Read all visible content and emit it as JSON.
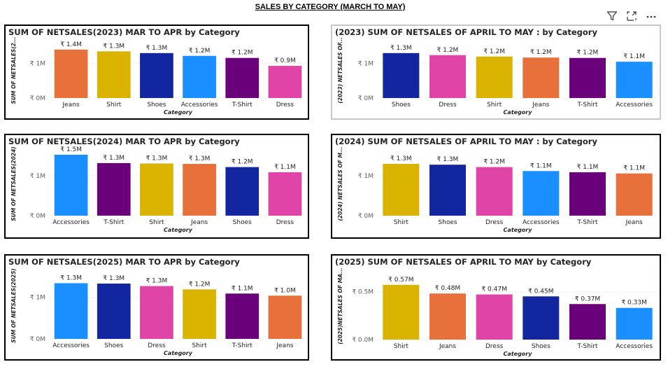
{
  "page": {
    "title": "SALES BY CATEGORY (MARCH TO MAY)"
  },
  "toolbar": {
    "icons": [
      "filter-icon",
      "focus-mode-icon",
      "more-options-icon"
    ]
  },
  "colors": {
    "Jeans": "#E8703A",
    "Shirt": "#D9B300",
    "Shoes": "#1226A0",
    "Accessories": "#1A8FFF",
    "T-Shirt": "#6B007B",
    "Dress": "#E044A7"
  },
  "chart_data": [
    {
      "type": "bar",
      "title": "SUM OF NETSALES(2023) MAR TO APR by Category",
      "xlabel": "Category",
      "ylabel": "SUM OF NETSALES(2...",
      "ylim": [
        0,
        1.6
      ],
      "yticks": [
        0,
        1
      ],
      "yticklabels": [
        "₹ 0M",
        "₹ 1M"
      ],
      "categories": [
        "Jeans",
        "Shirt",
        "Shoes",
        "Accessories",
        "T-Shirt",
        "Dress"
      ],
      "values": [
        1.4,
        1.35,
        1.3,
        1.22,
        1.16,
        0.93
      ],
      "labels": [
        "₹ 1.4M",
        "₹ 1.3M",
        "₹ 1.3M",
        "₹ 1.2M",
        "₹ 1.2M",
        "₹ 0.9M"
      ]
    },
    {
      "type": "bar",
      "title": "(2023) SUM OF NETSALES OF APRIL TO MAY : by Category",
      "xlabel": "Category",
      "ylabel": "(2023) NETSALES OF...",
      "ylim": [
        0,
        1.6
      ],
      "yticks": [
        0,
        1
      ],
      "yticklabels": [
        "₹ 0M",
        "₹ 1M"
      ],
      "categories": [
        "Shoes",
        "Dress",
        "Shirt",
        "Jeans",
        "T-Shirt",
        "Accessories"
      ],
      "values": [
        1.3,
        1.24,
        1.2,
        1.17,
        1.16,
        1.05
      ],
      "labels": [
        "₹ 1.3M",
        "₹ 1.2M",
        "₹ 1.2M",
        "₹ 1.2M",
        "₹ 1.2M",
        "₹ 1.1M"
      ]
    },
    {
      "type": "bar",
      "title": "SUM OF NETSALES(2024) MAR TO APR by Category",
      "xlabel": "Category",
      "ylabel": "SUM OF NETSALES(2024)",
      "ylim": [
        0,
        1.6
      ],
      "yticks": [
        0,
        1
      ],
      "yticklabels": [
        "₹ 0M",
        "₹ 1M"
      ],
      "categories": [
        "Accessories",
        "T-Shirt",
        "Shirt",
        "Jeans",
        "Shoes",
        "Dress"
      ],
      "values": [
        1.53,
        1.32,
        1.31,
        1.3,
        1.22,
        1.09
      ],
      "labels": [
        "₹ 1.5M",
        "₹ 1.3M",
        "₹ 1.3M",
        "₹ 1.3M",
        "₹ 1.2M",
        "₹ 1.1M"
      ]
    },
    {
      "type": "bar",
      "title": "(2024) SUM OF NETSALES OF APRIL TO MAY : by Category",
      "xlabel": "Category",
      "ylabel": "(2024) NETSALES OF M...",
      "ylim": [
        0,
        1.6
      ],
      "yticks": [
        0,
        1
      ],
      "yticklabels": [
        "₹ 0M",
        "₹ 1M"
      ],
      "categories": [
        "Shirt",
        "Shoes",
        "Dress",
        "Accessories",
        "T-Shirt",
        "Jeans"
      ],
      "values": [
        1.3,
        1.28,
        1.22,
        1.12,
        1.09,
        1.06
      ],
      "labels": [
        "₹ 1.3M",
        "₹ 1.3M",
        "₹ 1.2M",
        "₹ 1.1M",
        "₹ 1.1M",
        "₹ 1.1M"
      ]
    },
    {
      "type": "bar",
      "title": "SUM OF NETSALES(2025) MAR TO APR by Category",
      "xlabel": "Category",
      "ylabel": "SUM OF NETSALES(2025)",
      "ylim": [
        0,
        1.6
      ],
      "yticks": [
        0,
        1
      ],
      "yticklabels": [
        "₹ 0M",
        "₹ 1M"
      ],
      "categories": [
        "Accessories",
        "Shoes",
        "Dress",
        "Shirt",
        "T-Shirt",
        "Jeans"
      ],
      "values": [
        1.34,
        1.33,
        1.27,
        1.19,
        1.09,
        1.04
      ],
      "labels": [
        "₹ 1.3M",
        "₹ 1.3M",
        "₹ 1.3M",
        "₹ 1.2M",
        "₹ 1.1M",
        "₹ 1.0M"
      ]
    },
    {
      "type": "bar",
      "title": "(2025) SUM OF NETSALES OF APRIL TO MAY by Category",
      "xlabel": "Category",
      "ylabel": "(2025)NETSALES OF MA...",
      "ylim": [
        0,
        0.7
      ],
      "yticks": [
        0,
        0.5
      ],
      "yticklabels": [
        "₹ 0.0M",
        "₹ 0.5M"
      ],
      "categories": [
        "Shirt",
        "Jeans",
        "Dress",
        "Shoes",
        "T-Shirt",
        "Accessories"
      ],
      "values": [
        0.57,
        0.48,
        0.47,
        0.45,
        0.37,
        0.33
      ],
      "labels": [
        "₹ 0.57M",
        "₹ 0.48M",
        "₹ 0.47M",
        "₹ 0.45M",
        "₹ 0.37M",
        "₹ 0.33M"
      ]
    }
  ]
}
